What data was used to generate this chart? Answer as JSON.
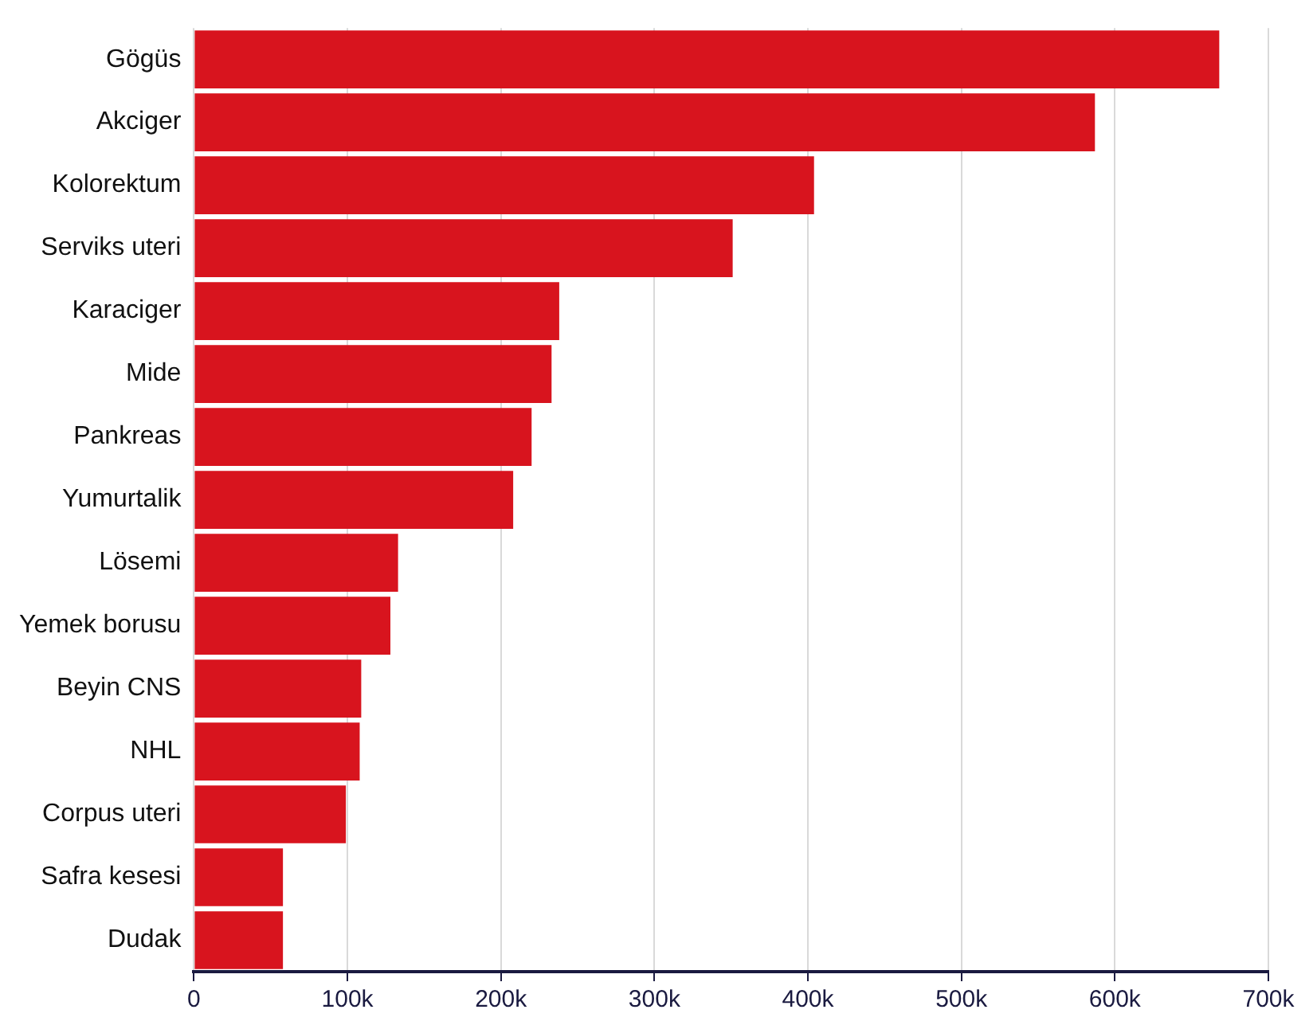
{
  "chart_data": {
    "type": "bar",
    "orientation": "horizontal",
    "categories": [
      "Gögüs",
      "Akciger",
      "Kolorektum",
      "Serviks uteri",
      "Karaciger",
      "Mide",
      "Pankreas",
      "Yumurtalik",
      "Lösemi",
      "Yemek borusu",
      "Beyin CNS",
      "NHL",
      "Corpus uteri",
      "Safra kesesi",
      "Dudak"
    ],
    "values": [
      668000,
      587000,
      404000,
      351000,
      238000,
      233000,
      220000,
      208000,
      133000,
      128000,
      109000,
      108000,
      99000,
      58000,
      58000
    ],
    "color": "#d8141e",
    "xlim": [
      0,
      700000
    ],
    "xticks": [
      0,
      {
        "value": 100000,
        "label": "100k"
      },
      {
        "value": 200000,
        "label": "200k"
      },
      {
        "value": 300000,
        "label": "300k"
      },
      {
        "value": 400000,
        "label": "400k"
      },
      {
        "value": 500000,
        "label": "500k"
      },
      {
        "value": 600000,
        "label": "600k"
      },
      {
        "value": 700000,
        "label": "700k"
      }
    ],
    "grid": "x",
    "legend": false
  }
}
